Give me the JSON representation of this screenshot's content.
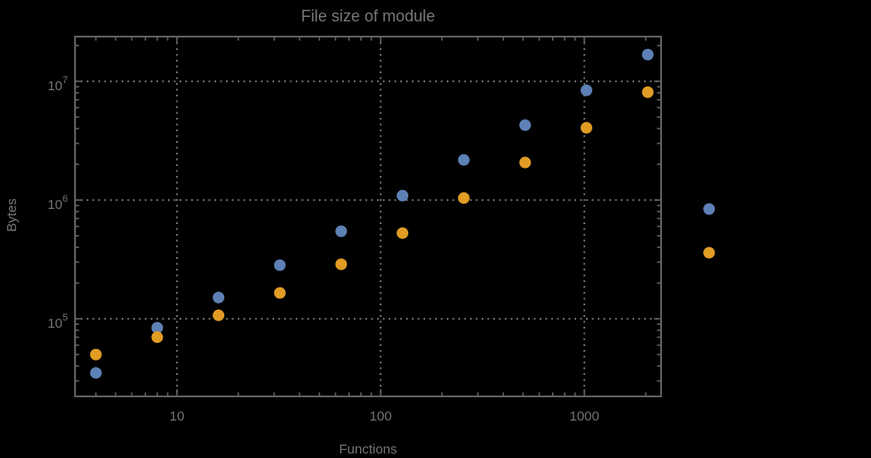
{
  "figure": {
    "background": "#000000",
    "frame_color": "#606060",
    "grid_color": "#6d6d6d",
    "text_color": "#747474"
  },
  "chart_data": {
    "type": "scatter",
    "title": "File size of module",
    "x_axis": {
      "label": "Functions",
      "scale": "log",
      "ticks": [
        10,
        100,
        1000
      ],
      "tick_labels": [
        "10",
        "100",
        "1000"
      ],
      "range": [
        3.16,
        2380
      ]
    },
    "y_axis": {
      "label": "Bytes",
      "scale": "log",
      "ticks": [
        100000,
        1000000,
        10000000
      ],
      "tick_labels": [
        "10^5",
        "10^6",
        "10^7"
      ],
      "range": [
        22200,
        23800000
      ]
    },
    "grid": "dotted",
    "legend": "none",
    "x": [
      4,
      8,
      16,
      32,
      64,
      128,
      256,
      512,
      1024,
      2048,
      4096
    ],
    "series": [
      {
        "name": "blue-series",
        "color": "#5E81B5",
        "values": [
          35000,
          84000,
          151000,
          283000,
          546000,
          1090000,
          2180000,
          4280000,
          8400000,
          16800000,
          840000
        ]
      },
      {
        "name": "orange-series",
        "color": "#E19C24",
        "values": [
          50000,
          70000,
          107000,
          165000,
          288000,
          527000,
          1040000,
          2070000,
          4060000,
          8100000,
          360000
        ]
      }
    ]
  }
}
